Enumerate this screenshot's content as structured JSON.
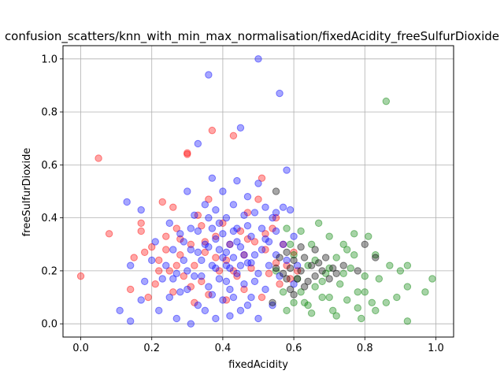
{
  "chart_data": {
    "type": "scatter",
    "title": "confusion_scatters/knn_with_min_max_normalisation/fixedAcidity_freeSulfurDioxide",
    "xlabel": "fixedAcidity",
    "ylabel": "freeSulfurDioxide",
    "xlim": [
      -0.05,
      1.05
    ],
    "ylim": [
      -0.05,
      1.05
    ],
    "xticks": [
      "0.0",
      "0.2",
      "0.4",
      "0.6",
      "0.8",
      "1.0"
    ],
    "yticks": [
      "0.0",
      "0.2",
      "0.4",
      "0.6",
      "0.8",
      "1.0"
    ],
    "xtick_values": [
      0,
      0.2,
      0.4,
      0.6,
      0.8,
      1.0
    ],
    "ytick_values": [
      0,
      0.2,
      0.4,
      0.6,
      0.8,
      1.0
    ],
    "grid": true,
    "marker_alpha": 0.35,
    "series": [
      {
        "color": "#ff0000",
        "points": [
          [
            0.0,
            0.18
          ],
          [
            0.05,
            0.625
          ],
          [
            0.08,
            0.34
          ],
          [
            0.14,
            0.13
          ],
          [
            0.15,
            0.25
          ],
          [
            0.17,
            0.38
          ],
          [
            0.17,
            0.35
          ],
          [
            0.18,
            0.27
          ],
          [
            0.19,
            0.1
          ],
          [
            0.2,
            0.29
          ],
          [
            0.21,
            0.15
          ],
          [
            0.22,
            0.24
          ],
          [
            0.23,
            0.46
          ],
          [
            0.24,
            0.33
          ],
          [
            0.25,
            0.2
          ],
          [
            0.26,
            0.44
          ],
          [
            0.27,
            0.36
          ],
          [
            0.28,
            0.26
          ],
          [
            0.29,
            0.18
          ],
          [
            0.3,
            0.645
          ],
          [
            0.3,
            0.64
          ],
          [
            0.31,
            0.3
          ],
          [
            0.32,
            0.22
          ],
          [
            0.33,
            0.41
          ],
          [
            0.34,
            0.16
          ],
          [
            0.35,
            0.27
          ],
          [
            0.36,
            0.47
          ],
          [
            0.37,
            0.73
          ],
          [
            0.38,
            0.33
          ],
          [
            0.39,
            0.2
          ],
          [
            0.4,
            0.38
          ],
          [
            0.41,
            0.24
          ],
          [
            0.42,
            0.3
          ],
          [
            0.43,
            0.71
          ],
          [
            0.44,
            0.18
          ],
          [
            0.45,
            0.35
          ],
          [
            0.46,
            0.26
          ],
          [
            0.47,
            0.42
          ],
          [
            0.48,
            0.21
          ],
          [
            0.49,
            0.31
          ],
          [
            0.5,
            0.47
          ],
          [
            0.51,
            0.55
          ],
          [
            0.52,
            0.28
          ],
          [
            0.53,
            0.19
          ],
          [
            0.54,
            0.36
          ],
          [
            0.55,
            0.23
          ],
          [
            0.56,
            0.15
          ],
          [
            0.57,
            0.3
          ],
          [
            0.58,
            0.22
          ],
          [
            0.59,
            0.17
          ],
          [
            0.6,
            0.27
          ],
          [
            0.61,
            0.2
          ],
          [
            0.26,
            0.12
          ],
          [
            0.32,
            0.08
          ],
          [
            0.36,
            0.11
          ],
          [
            0.41,
            0.09
          ],
          [
            0.46,
            0.13
          ],
          [
            0.51,
            0.1
          ],
          [
            0.24,
            0.28
          ],
          [
            0.28,
            0.32
          ],
          [
            0.34,
            0.37
          ],
          [
            0.38,
            0.25
          ],
          [
            0.43,
            0.2
          ],
          [
            0.47,
            0.32
          ],
          [
            0.52,
            0.34
          ],
          [
            0.55,
            0.4
          ],
          [
            0.22,
            0.2
          ],
          [
            0.27,
            0.22
          ],
          [
            0.31,
            0.14
          ],
          [
            0.35,
            0.31
          ]
        ]
      },
      {
        "color": "#008000",
        "points": [
          [
            0.55,
            0.2
          ],
          [
            0.57,
            0.12
          ],
          [
            0.58,
            0.05
          ],
          [
            0.59,
            0.3
          ],
          [
            0.6,
            0.26
          ],
          [
            0.61,
            0.17
          ],
          [
            0.62,
            0.35
          ],
          [
            0.63,
            0.08
          ],
          [
            0.64,
            0.22
          ],
          [
            0.65,
            0.3
          ],
          [
            0.66,
            0.14
          ],
          [
            0.67,
            0.38
          ],
          [
            0.68,
            0.1
          ],
          [
            0.69,
            0.19
          ],
          [
            0.7,
            0.33
          ],
          [
            0.71,
            0.05
          ],
          [
            0.72,
            0.25
          ],
          [
            0.73,
            0.15
          ],
          [
            0.74,
            0.3
          ],
          [
            0.75,
            0.09
          ],
          [
            0.76,
            0.21
          ],
          [
            0.77,
            0.34
          ],
          [
            0.78,
            0.12
          ],
          [
            0.79,
            0.02
          ],
          [
            0.8,
            0.18
          ],
          [
            0.81,
            0.33
          ],
          [
            0.82,
            0.08
          ],
          [
            0.83,
            0.26
          ],
          [
            0.84,
            0.17
          ],
          [
            0.86,
            0.84
          ],
          [
            0.86,
            0.08
          ],
          [
            0.87,
            0.22
          ],
          [
            0.89,
            0.1
          ],
          [
            0.9,
            0.2
          ],
          [
            0.92,
            0.22
          ],
          [
            0.92,
            0.14
          ],
          [
            0.92,
            0.01
          ],
          [
            0.97,
            0.12
          ],
          [
            0.99,
            0.17
          ],
          [
            0.65,
            0.04
          ],
          [
            0.7,
            0.1
          ],
          [
            0.72,
            0.03
          ],
          [
            0.75,
            0.28
          ],
          [
            0.78,
            0.06
          ],
          [
            0.8,
            0.12
          ],
          [
            0.83,
            0.05
          ],
          [
            0.68,
            0.16
          ],
          [
            0.62,
            0.12
          ],
          [
            0.6,
            0.08
          ],
          [
            0.66,
            0.24
          ],
          [
            0.74,
            0.19
          ],
          [
            0.77,
            0.26
          ],
          [
            0.7,
            0.21
          ],
          [
            0.64,
            0.07
          ],
          [
            0.58,
            0.36
          ]
        ]
      },
      {
        "color": "#0000ff",
        "points": [
          [
            0.11,
            0.05
          ],
          [
            0.13,
            0.46
          ],
          [
            0.14,
            0.01
          ],
          [
            0.14,
            0.22
          ],
          [
            0.17,
            0.43
          ],
          [
            0.17,
            0.09
          ],
          [
            0.18,
            0.16
          ],
          [
            0.2,
            0.24
          ],
          [
            0.21,
            0.31
          ],
          [
            0.22,
            0.05
          ],
          [
            0.23,
            0.17
          ],
          [
            0.24,
            0.22
          ],
          [
            0.25,
            0.38
          ],
          [
            0.25,
            0.1
          ],
          [
            0.26,
            0.28
          ],
          [
            0.27,
            0.02
          ],
          [
            0.27,
            0.19
          ],
          [
            0.28,
            0.34
          ],
          [
            0.29,
            0.24
          ],
          [
            0.3,
            0.5
          ],
          [
            0.3,
            0.13
          ],
          [
            0.31,
            0.0
          ],
          [
            0.31,
            0.28
          ],
          [
            0.32,
            0.41
          ],
          [
            0.32,
            0.18
          ],
          [
            0.33,
            0.68
          ],
          [
            0.33,
            0.35
          ],
          [
            0.33,
            0.07
          ],
          [
            0.34,
            0.24
          ],
          [
            0.35,
            0.3
          ],
          [
            0.35,
            0.45
          ],
          [
            0.36,
            0.94
          ],
          [
            0.36,
            0.14
          ],
          [
            0.37,
            0.55
          ],
          [
            0.37,
            0.36
          ],
          [
            0.37,
            0.22
          ],
          [
            0.38,
            0.02
          ],
          [
            0.38,
            0.43
          ],
          [
            0.39,
            0.28
          ],
          [
            0.39,
            0.17
          ],
          [
            0.4,
            0.5
          ],
          [
            0.4,
            0.34
          ],
          [
            0.4,
            0.09
          ],
          [
            0.41,
            0.22
          ],
          [
            0.41,
            0.4
          ],
          [
            0.42,
            0.03
          ],
          [
            0.42,
            0.3
          ],
          [
            0.42,
            0.13
          ],
          [
            0.43,
            0.45
          ],
          [
            0.43,
            0.25
          ],
          [
            0.44,
            0.54
          ],
          [
            0.44,
            0.36
          ],
          [
            0.44,
            0.19
          ],
          [
            0.45,
            0.74
          ],
          [
            0.45,
            0.05
          ],
          [
            0.45,
            0.29
          ],
          [
            0.46,
            0.41
          ],
          [
            0.46,
            0.15
          ],
          [
            0.47,
            0.23
          ],
          [
            0.47,
            0.48
          ],
          [
            0.48,
            0.33
          ],
          [
            0.48,
            0.1
          ],
          [
            0.49,
            0.42
          ],
          [
            0.49,
            0.26
          ],
          [
            0.5,
            1.0
          ],
          [
            0.5,
            0.53
          ],
          [
            0.5,
            0.19
          ],
          [
            0.5,
            0.02
          ],
          [
            0.51,
            0.36
          ],
          [
            0.51,
            0.28
          ],
          [
            0.52,
            0.44
          ],
          [
            0.52,
            0.13
          ],
          [
            0.53,
            0.31
          ],
          [
            0.53,
            0.22
          ],
          [
            0.54,
            0.4
          ],
          [
            0.54,
            0.07
          ],
          [
            0.55,
            0.26
          ],
          [
            0.55,
            0.35
          ],
          [
            0.56,
            0.87
          ],
          [
            0.56,
            0.18
          ],
          [
            0.57,
            0.3
          ],
          [
            0.57,
            0.44
          ],
          [
            0.58,
            0.58
          ],
          [
            0.58,
            0.24
          ],
          [
            0.59,
            0.43
          ],
          [
            0.6,
            0.33
          ],
          [
            0.6,
            0.15
          ],
          [
            0.61,
            0.22
          ],
          [
            0.36,
            0.4
          ],
          [
            0.38,
            0.32
          ],
          [
            0.41,
            0.27
          ],
          [
            0.43,
            0.35
          ],
          [
            0.39,
            0.38
          ],
          [
            0.42,
            0.21
          ],
          [
            0.44,
            0.31
          ],
          [
            0.36,
            0.29
          ],
          [
            0.34,
            0.18
          ],
          [
            0.47,
            0.37
          ],
          [
            0.49,
            0.16
          ],
          [
            0.46,
            0.26
          ],
          [
            0.4,
            0.25
          ],
          [
            0.38,
            0.21
          ],
          [
            0.45,
            0.22
          ],
          [
            0.33,
            0.27
          ],
          [
            0.31,
            0.36
          ],
          [
            0.29,
            0.31
          ],
          [
            0.3,
            0.2
          ],
          [
            0.26,
            0.17
          ],
          [
            0.28,
            0.12
          ],
          [
            0.35,
            0.05
          ],
          [
            0.47,
            0.07
          ],
          [
            0.52,
            0.32
          ],
          [
            0.55,
            0.42
          ],
          [
            0.48,
            0.23
          ],
          [
            0.41,
            0.16
          ],
          [
            0.37,
            0.11
          ],
          [
            0.43,
            0.1
          ]
        ]
      },
      {
        "color": "#000000",
        "points": [
          [
            0.55,
            0.5
          ],
          [
            0.55,
            0.21
          ],
          [
            0.56,
            0.25
          ],
          [
            0.57,
            0.19
          ],
          [
            0.58,
            0.27
          ],
          [
            0.59,
            0.13
          ],
          [
            0.59,
            0.21
          ],
          [
            0.6,
            0.24
          ],
          [
            0.61,
            0.17
          ],
          [
            0.62,
            0.29
          ],
          [
            0.62,
            0.2
          ],
          [
            0.63,
            0.25
          ],
          [
            0.64,
            0.16
          ],
          [
            0.65,
            0.22
          ],
          [
            0.66,
            0.28
          ],
          [
            0.66,
            0.18
          ],
          [
            0.67,
            0.23
          ],
          [
            0.68,
            0.2
          ],
          [
            0.69,
            0.25
          ],
          [
            0.7,
            0.17
          ],
          [
            0.71,
            0.21
          ],
          [
            0.72,
            0.19
          ],
          [
            0.74,
            0.22
          ],
          [
            0.78,
            0.2
          ],
          [
            0.8,
            0.3
          ],
          [
            0.83,
            0.25
          ],
          [
            0.54,
            0.08
          ],
          [
            0.6,
            0.11
          ],
          [
            0.63,
            0.14
          ],
          [
            0.58,
            0.17
          ]
        ]
      }
    ]
  }
}
